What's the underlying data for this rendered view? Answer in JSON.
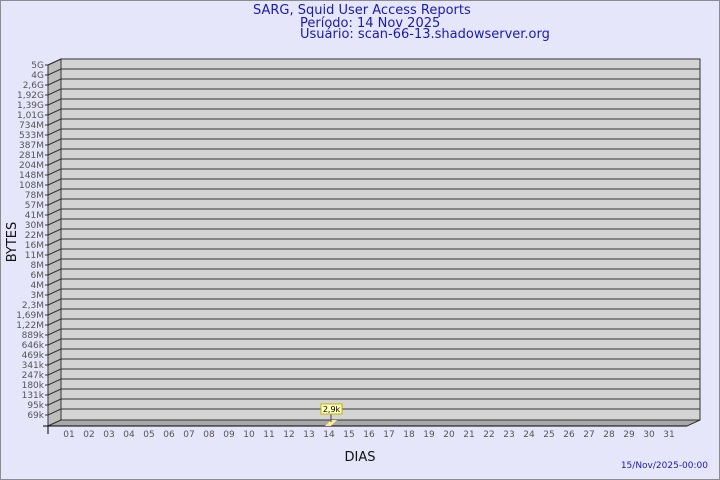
{
  "header": {
    "title": "SARG, Squid User Access Reports",
    "period": "Período: 14 Nov 2025",
    "user": "Usuário: scan-66-13.shadowserver.org"
  },
  "footer": {
    "timestamp": "15/Nov/2025-00:00"
  },
  "chart_data": {
    "type": "bar",
    "title": "SARG, Squid User Access Reports",
    "xlabel": "DIAS",
    "ylabel": "BYTES",
    "y_scale": "log",
    "y_tick_labels": [
      "5G",
      "4G",
      "2,6G",
      "1,92G",
      "1,39G",
      "1,01G",
      "734M",
      "533M",
      "387M",
      "281M",
      "204M",
      "148M",
      "108M",
      "78M",
      "57M",
      "41M",
      "30M",
      "22M",
      "16M",
      "11M",
      "8M",
      "6M",
      "4M",
      "3M",
      "2,3M",
      "1,69M",
      "1,22M",
      "889k",
      "646k",
      "469k",
      "341k",
      "247k",
      "180k",
      "131k",
      "95k",
      "69k"
    ],
    "categories": [
      "01",
      "02",
      "03",
      "04",
      "05",
      "06",
      "07",
      "08",
      "09",
      "10",
      "11",
      "12",
      "13",
      "14",
      "15",
      "16",
      "17",
      "18",
      "19",
      "20",
      "21",
      "22",
      "23",
      "24",
      "25",
      "26",
      "27",
      "28",
      "29",
      "30",
      "31"
    ],
    "bars": [
      {
        "day": "14",
        "value": 2900,
        "label": "2,9k"
      }
    ],
    "grid": true,
    "colors": {
      "wall": "#d4d4d4",
      "side": "#bdbdbd",
      "bar": "#ffe89a",
      "label_bg": "#ffffc0",
      "label_border": "#c8b000"
    }
  }
}
